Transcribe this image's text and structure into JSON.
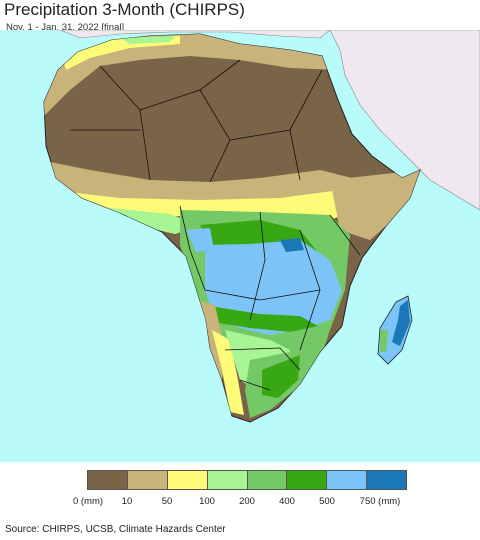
{
  "title": "Precipitation 3-Month (CHIRPS)",
  "subtitle": "Nov. 1 - Jan. 31, 2022 [final]",
  "colors": {
    "ocean": "#b9fbfb",
    "outside_region": "#efe9ef",
    "bins": [
      "#7a6448",
      "#c8b47a",
      "#fdfb78",
      "#a7f594",
      "#74c866",
      "#38a812",
      "#7cc4f7",
      "#1a78b8"
    ]
  },
  "legend": {
    "labels": [
      "0 (mm)",
      "10",
      "50",
      "100",
      "200",
      "400",
      "500",
      "750 (mm)"
    ]
  },
  "source": "Source: CHIRPS, UCSB, Climate Hazards Center"
}
